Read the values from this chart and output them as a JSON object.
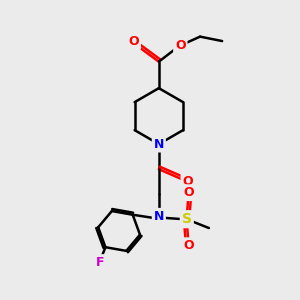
{
  "bg_color": "#ebebeb",
  "atom_colors": {
    "C": "#000000",
    "N": "#0000ff",
    "O": "#ff0000",
    "S": "#cccc00",
    "F": "#cc00cc"
  },
  "bond_color": "#000000",
  "bond_width": 1.8,
  "label_fontsize": 9,
  "label_bg": "#ebebeb"
}
